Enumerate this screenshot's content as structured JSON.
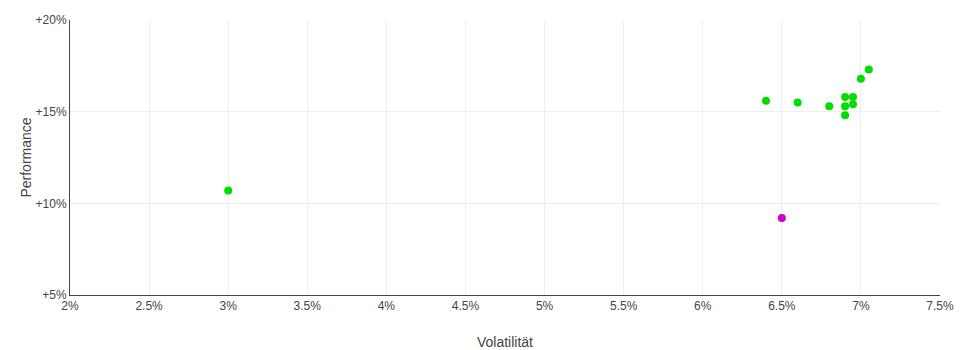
{
  "chart_data": {
    "type": "scatter",
    "xlabel": "Volatilität",
    "ylabel": "Performance",
    "xlim": [
      0.02,
      0.075
    ],
    "ylim": [
      0.05,
      0.2
    ],
    "xticks": [
      {
        "value": 0.02,
        "label": "2%"
      },
      {
        "value": 0.025,
        "label": "2.5%"
      },
      {
        "value": 0.03,
        "label": "3%"
      },
      {
        "value": 0.035,
        "label": "3.5%"
      },
      {
        "value": 0.04,
        "label": "4%"
      },
      {
        "value": 0.045,
        "label": "4.5%"
      },
      {
        "value": 0.05,
        "label": "5%"
      },
      {
        "value": 0.055,
        "label": "5.5%"
      },
      {
        "value": 0.06,
        "label": "6%"
      },
      {
        "value": 0.065,
        "label": "6.5%"
      },
      {
        "value": 0.07,
        "label": "7%"
      },
      {
        "value": 0.075,
        "label": "7.5%"
      }
    ],
    "yticks": [
      {
        "value": 0.05,
        "label": "+5%"
      },
      {
        "value": 0.1,
        "label": "+10%"
      },
      {
        "value": 0.15,
        "label": "+15%"
      },
      {
        "value": 0.2,
        "label": "+20%"
      }
    ],
    "grid": true,
    "marker": "circle",
    "series": [
      {
        "color": "#00dd00",
        "x": [
          0.03,
          0.064,
          0.066,
          0.068,
          0.069,
          0.069,
          0.069,
          0.0695,
          0.0695,
          0.07,
          0.0705
        ],
        "values": [
          0.107,
          0.156,
          0.155,
          0.153,
          0.158,
          0.153,
          0.148,
          0.158,
          0.154,
          0.168,
          0.173
        ]
      },
      {
        "color": "#cc00cc",
        "x": [
          0.065
        ],
        "values": [
          0.092
        ]
      }
    ]
  }
}
